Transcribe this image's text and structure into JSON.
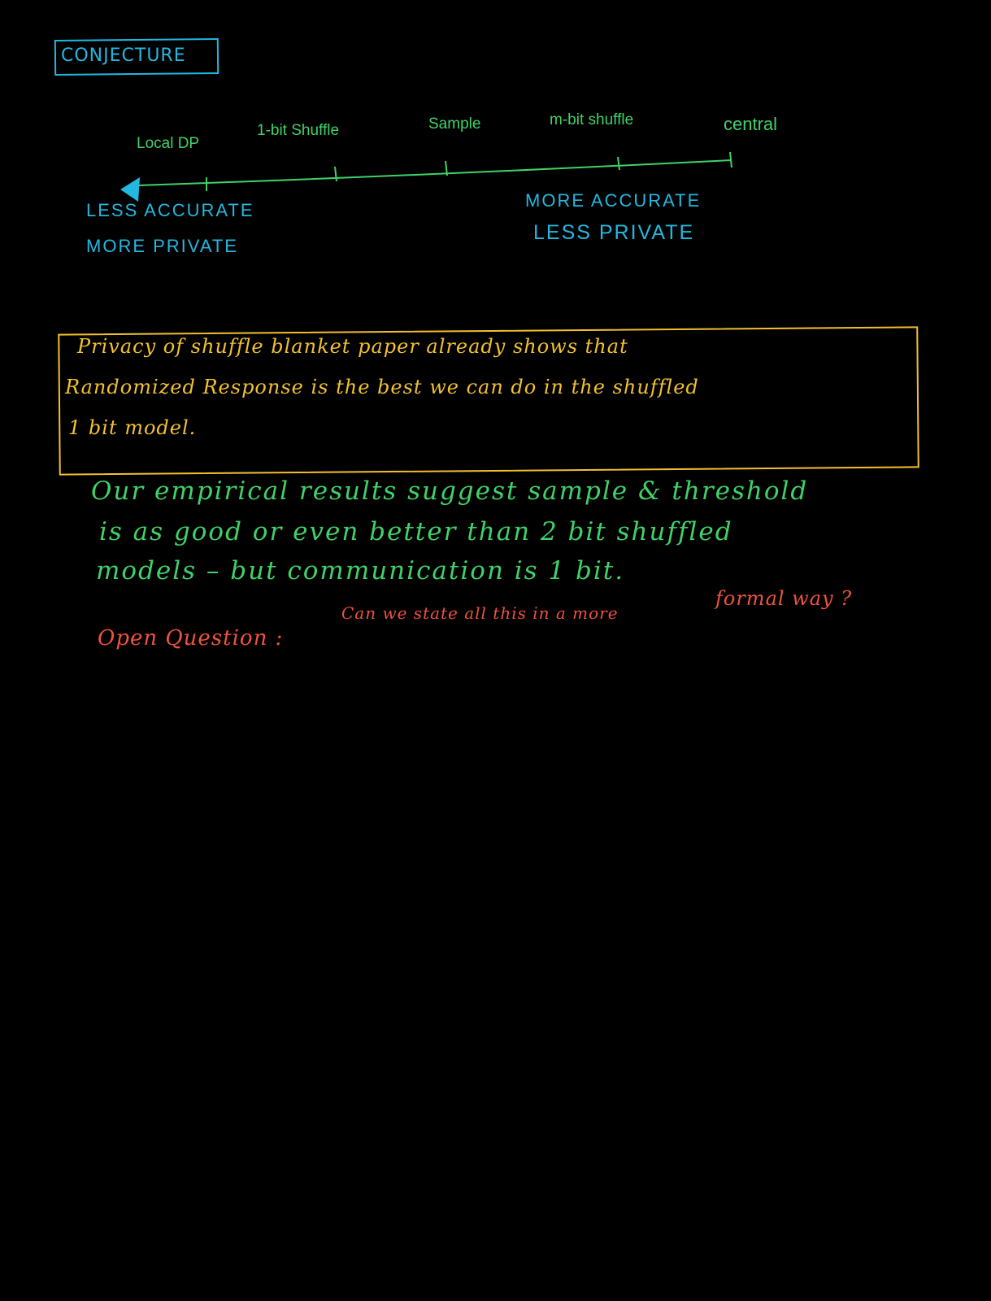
{
  "conjecture": {
    "title": "CONJECTURE"
  },
  "scale": {
    "points": [
      "Local DP",
      "1-bit Shuffle",
      "Sample",
      "m-bit shuffle",
      "central"
    ],
    "left_end": {
      "line1": "LESS ACCURATE",
      "line2": "MORE PRIVATE"
    },
    "right_end": {
      "line1": "MORE ACCURATE",
      "line2": "LESS PRIVATE"
    }
  },
  "note_box": {
    "lines": [
      "Privacy of shuffle blanket paper already shows that",
      "Randomized Response is the best we can do in the shuffled",
      "1 bit model."
    ]
  },
  "results": {
    "lines": [
      "Our empirical results suggest sample & threshold",
      "is as good or even better than 2 bit shuffled",
      "models – but communication is 1 bit."
    ]
  },
  "open_question": {
    "label": "Open Question :",
    "text": "Can we state all this in a more",
    "text_tail": "formal way ?"
  },
  "colors": {
    "blue": "#22b8e0",
    "green": "#3fd268",
    "yellow": "#f2c12e",
    "red": "#f0523f",
    "background": "#000000"
  }
}
